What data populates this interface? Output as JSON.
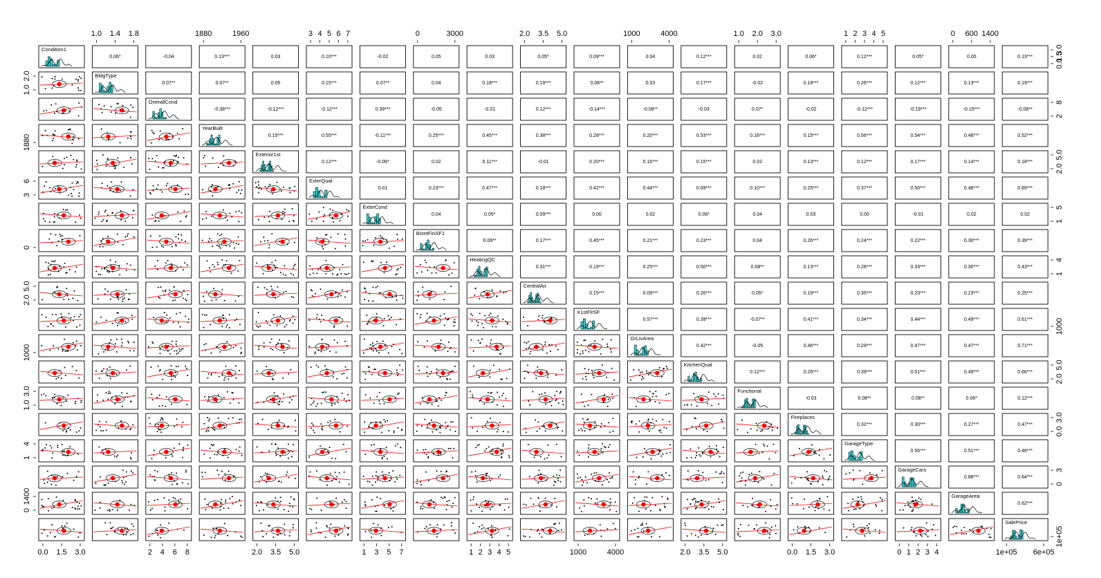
{
  "chart_data": {
    "type": "scatter",
    "variables": [
      "Condition1",
      "BldgType",
      "OverallCond",
      "YearBuilt",
      "Exterior1st",
      "ExterQual",
      "ExterCond",
      "BsmtFinSF1",
      "HeatingQC",
      "CentralAir",
      "X1stFlrSF",
      "GrLivArea",
      "KitchenQual",
      "Functional",
      "Fireplaces",
      "GarageType",
      "GarageCars",
      "GarageArea",
      "SalePrice"
    ],
    "top_axis": [
      {
        "col": 1,
        "labels": [
          "1.0",
          "1.4",
          "1.8"
        ]
      },
      {
        "col": 3,
        "labels": [
          "1880",
          "1960"
        ]
      },
      {
        "col": 5,
        "labels": [
          "3",
          "4",
          "5",
          "6",
          "7"
        ]
      },
      {
        "col": 7,
        "labels": [
          "0",
          "3000"
        ]
      },
      {
        "col": 9,
        "labels": [
          "2.0",
          "3.5",
          "5.0"
        ]
      },
      {
        "col": 11,
        "labels": [
          "1000",
          "4000"
        ]
      },
      {
        "col": 13,
        "labels": [
          "1.0",
          "2.0",
          "3.0"
        ]
      },
      {
        "col": 15,
        "labels": [
          "1",
          "2",
          "3",
          "4",
          "5"
        ]
      },
      {
        "col": 17,
        "labels": [
          "0",
          "600",
          "1400"
        ]
      }
    ],
    "bottom_axis": [
      {
        "col": 0,
        "labels": [
          "0.0",
          "1.5",
          "3.0"
        ]
      },
      {
        "col": 2,
        "labels": [
          "2",
          "4",
          "6",
          "8"
        ]
      },
      {
        "col": 4,
        "labels": [
          "2.0",
          "3.5",
          "5.0"
        ]
      },
      {
        "col": 6,
        "labels": [
          "1",
          "3",
          "5",
          "7"
        ]
      },
      {
        "col": 8,
        "labels": [
          "1",
          "2",
          "3",
          "4",
          "5"
        ]
      },
      {
        "col": 10,
        "labels": [
          "1000",
          "4000"
        ]
      },
      {
        "col": 12,
        "labels": [
          "2.0",
          "3.5",
          "5.0"
        ]
      },
      {
        "col": 14,
        "labels": [
          "0.0",
          "1.5",
          "3.0"
        ]
      },
      {
        "col": 16,
        "labels": [
          "0",
          "1",
          "2",
          "3",
          "4"
        ]
      },
      {
        "col": 18,
        "labels": [
          "1e+05",
          "6e+05"
        ]
      }
    ],
    "left_axis": [
      {
        "row": 1,
        "labels": [
          "1.0",
          "2.0"
        ]
      },
      {
        "row": 3,
        "labels": [
          "1880"
        ]
      },
      {
        "row": 5,
        "labels": [
          "3",
          "6"
        ]
      },
      {
        "row": 7,
        "labels": [
          "0"
        ]
      },
      {
        "row": 9,
        "labels": [
          "2.0",
          "5.0"
        ]
      },
      {
        "row": 11,
        "labels": [
          "1000"
        ]
      },
      {
        "row": 13,
        "labels": [
          "1.0",
          "3.0"
        ]
      },
      {
        "row": 15,
        "labels": [
          "1",
          "4"
        ]
      },
      {
        "row": 17,
        "labels": [
          "0",
          "1400"
        ]
      }
    ],
    "right_axis": [
      {
        "row": 0,
        "labels": [
          "0.0",
          "1.5",
          "3.0"
        ]
      },
      {
        "row": 2,
        "labels": [
          "2",
          "8"
        ]
      },
      {
        "row": 4,
        "labels": [
          "2.0",
          "5.0"
        ]
      },
      {
        "row": 6,
        "labels": [
          "1",
          "5"
        ]
      },
      {
        "row": 8,
        "labels": [
          "1",
          "4"
        ]
      },
      {
        "row": 10,
        "labels": [
          "1000"
        ]
      },
      {
        "row": 12,
        "labels": [
          "2.0",
          "5.0"
        ]
      },
      {
        "row": 14,
        "labels": [
          "0.0",
          "3.0"
        ]
      },
      {
        "row": 16,
        "labels": [
          "0",
          "3"
        ]
      },
      {
        "row": 18,
        "labels": [
          "1e+05"
        ]
      }
    ],
    "correlations": [
      [
        "0.06*",
        "-0.04",
        "0.13***",
        "0.03",
        "0.10***",
        "-0.02",
        "0.05",
        "0.03",
        "0.05*",
        "0.09***",
        "0.04",
        "0.12***",
        "0.02",
        "0.06*",
        "0.12***",
        "0.05*",
        "0.05",
        "0.13***"
      ],
      [
        "0.07**",
        "0.07**",
        "0.05",
        "0.15***",
        "0.07**",
        "0.04",
        "0.18***",
        "0.19***",
        "0.08**",
        "0.03",
        "0.17***",
        "-0.02",
        "0.18***",
        "0.26***",
        "0.12***",
        "0.13***",
        "0.19***"
      ],
      [
        "-0.38***",
        "-0.12***",
        "-0.12***",
        "0.39***",
        "-0.05",
        "-0.01",
        "0.12***",
        "-0.14***",
        "-0.08**",
        "-0.03",
        "0.07*",
        "-0.02",
        "-0.12***",
        "-0.19***",
        "-0.15***",
        "-0.08**"
      ],
      [
        "0.15***",
        "0.55***",
        "-0.11***",
        "0.25***",
        "0.45***",
        "0.38***",
        "0.28***",
        "0.20***",
        "0.53***",
        "0.16***",
        "0.15***",
        "0.56***",
        "0.54***",
        "0.48***",
        "0.52***"
      ],
      [
        "0.12***",
        "-0.06*",
        "0.02",
        "0.11***",
        "-0.01",
        "0.20***",
        "0.16***",
        "0.15***",
        "0.02",
        "0.13***",
        "0.12***",
        "0.17***",
        "0.14***",
        "0.18***"
      ],
      [
        "0.01",
        "0.23***",
        "0.47***",
        "0.18***",
        "0.42***",
        "0.44***",
        "0.69***",
        "0.10***",
        "0.25***",
        "0.37***",
        "0.50***",
        "0.48***",
        "0.69***"
      ],
      [
        "0.04",
        "0.05*",
        "0.09***",
        "0.00",
        "0.02",
        "0.06*",
        "0.04",
        "0.03",
        "0.00",
        "-0.01",
        "0.02",
        "0.02"
      ],
      [
        "0.09**",
        "0.17***",
        "0.45***",
        "0.21***",
        "0.23***",
        "0.04",
        "0.26***",
        "0.24***",
        "0.22***",
        "0.30***",
        "0.39***"
      ],
      [
        "0.31***",
        "0.19***",
        "0.25***",
        "0.50***",
        "0.08**",
        "0.13***",
        "0.28***",
        "0.33***",
        "0.30***",
        "0.43***"
      ],
      [
        "0.15***",
        "0.09***",
        "0.26***",
        "0.05*",
        "0.19***",
        "0.35***",
        "0.23***",
        "0.23***",
        "0.25***"
      ],
      [
        "0.57***",
        "0.39***",
        "-0.07**",
        "0.41***",
        "0.34***",
        "0.44***",
        "0.49***",
        "0.61***"
      ],
      [
        "0.42***",
        "-0.05",
        "0.46***",
        "0.29***",
        "0.47***",
        "0.47***",
        "0.71***"
      ],
      [
        "0.12***",
        "0.26***",
        "0.39***",
        "0.51***",
        "0.49***",
        "0.66***"
      ],
      [
        "-0.03",
        "0.08**",
        "0.08**",
        "0.06*",
        "0.12***"
      ],
      [
        "0.32***",
        "0.30***",
        "0.27***",
        "0.47***"
      ],
      [
        "0.56***",
        "0.51***",
        "0.46***"
      ],
      [
        "0.88***",
        "0.64***"
      ],
      [
        "0.62***"
      ]
    ],
    "colors": {
      "histogram": "#33cccc",
      "smoother": "#ff0000",
      "points": "#000000"
    }
  }
}
